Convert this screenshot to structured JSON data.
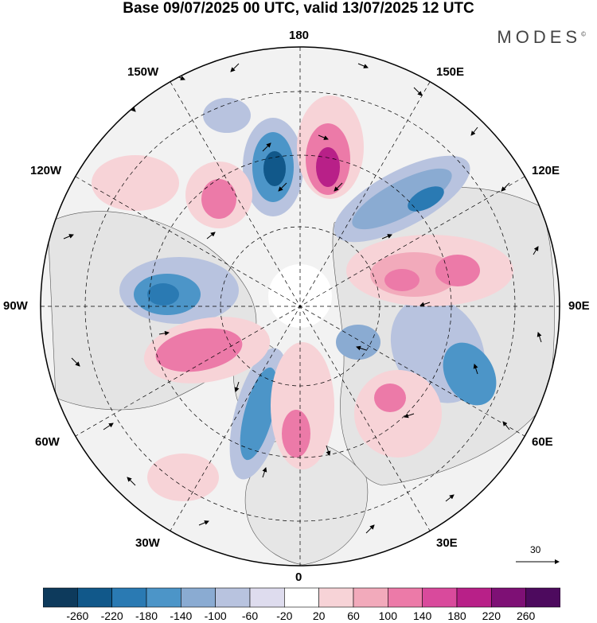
{
  "title": "Base 09/07/2025 00 UTC, valid 13/07/2025 12 UTC",
  "brand": "MODES",
  "brand_mark": "©",
  "longitude_labels": {
    "top": "180",
    "bottom": "0",
    "left": "90W",
    "right": "90E",
    "upper_left": "150W",
    "upper_right": "150E",
    "mid_left_upper": "120W",
    "mid_right_upper": "120E",
    "mid_left_lower": "60W",
    "mid_right_lower": "60E",
    "lower_left": "30W",
    "lower_right": "30E"
  },
  "reference_vector": {
    "label": "30"
  },
  "colorbar": {
    "labels": [
      "-260",
      "-220",
      "-180",
      "-140",
      "-100",
      "-60",
      "-20",
      "20",
      "60",
      "100",
      "140",
      "180",
      "220",
      "260"
    ],
    "colors": [
      "#0d3a5c",
      "#11588a",
      "#2a7ab3",
      "#4c95c8",
      "#8aabd2",
      "#b8c3df",
      "#dedcee",
      "#ffffff",
      "#f7d3d7",
      "#f2aabb",
      "#ec7aa8",
      "#d94a9c",
      "#b82088",
      "#7e1075",
      "#4d0a5e"
    ]
  }
}
